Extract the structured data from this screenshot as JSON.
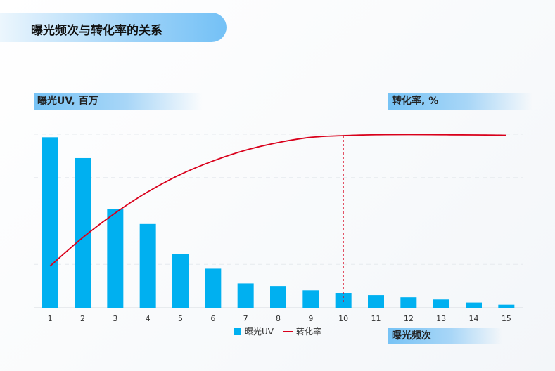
{
  "header": {
    "title": "曝光频次与转化率的关系"
  },
  "chart_data": {
    "type": "bar",
    "categories": [
      "1",
      "2",
      "3",
      "4",
      "5",
      "6",
      "7",
      "8",
      "9",
      "10",
      "11",
      "12",
      "13",
      "14",
      "15"
    ],
    "series": [
      {
        "name": "曝光UV",
        "type": "bar",
        "color": "#00b0f0",
        "values": [
          39.3,
          34.5,
          22.8,
          19.3,
          12.4,
          9.0,
          5.6,
          5.0,
          4.0,
          3.4,
          2.9,
          2.4,
          1.9,
          1.2,
          0.7
        ]
      },
      {
        "name": "转化率",
        "type": "line",
        "color": "#d9001b",
        "values": [
          62,
          70.2,
          77.3,
          83.4,
          88.4,
          92.3,
          95.4,
          97.6,
          99.1,
          99.6,
          99.85,
          99.9,
          99.85,
          99.8,
          99.7
        ]
      }
    ],
    "ylabel_left": "曝光UV, 百万",
    "ylabel_right": "转化率, %",
    "xlabel": "曝光频次",
    "ylim_left": [
      0,
      40
    ],
    "ylim_right": [
      50,
      100
    ],
    "marker_category": "10",
    "grid": true,
    "legend": "bottom-center"
  }
}
